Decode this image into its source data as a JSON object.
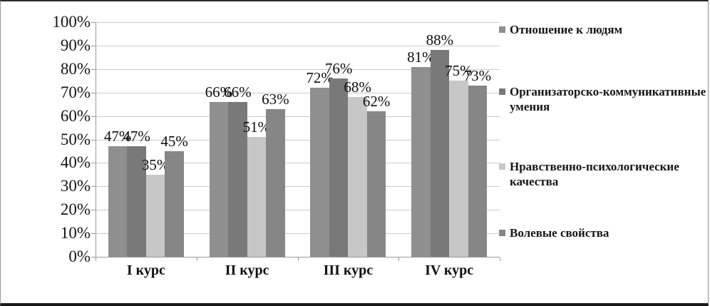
{
  "chart_data": {
    "type": "bar",
    "title": "",
    "xlabel": "",
    "ylabel": "",
    "categories": [
      "I курс",
      "II курс",
      "III курс",
      "IV курс"
    ],
    "series": [
      {
        "name": "Отношение к людям",
        "color": "#8f8f8f",
        "values": [
          47,
          66,
          72,
          81
        ]
      },
      {
        "name": "Организаторско-коммуникативные умения",
        "color": "#797979",
        "values": [
          47,
          66,
          76,
          88
        ]
      },
      {
        "name": "Нравственно-психологические качества",
        "color": "#c7c7c7",
        "values": [
          35,
          51,
          68,
          75
        ]
      },
      {
        "name": "Волевые свойства",
        "color": "#868686",
        "values": [
          45,
          63,
          62,
          73
        ]
      }
    ],
    "value_label_suffix": "%",
    "y_tick_labels": [
      "0%",
      "10%",
      "20%",
      "30%",
      "40%",
      "50%",
      "60%",
      "70%",
      "80%",
      "90%",
      "100%"
    ],
    "ylim": [
      0,
      100
    ],
    "y_tick_step": 10,
    "grid": true,
    "legend_position": "right",
    "value_labels": true
  }
}
